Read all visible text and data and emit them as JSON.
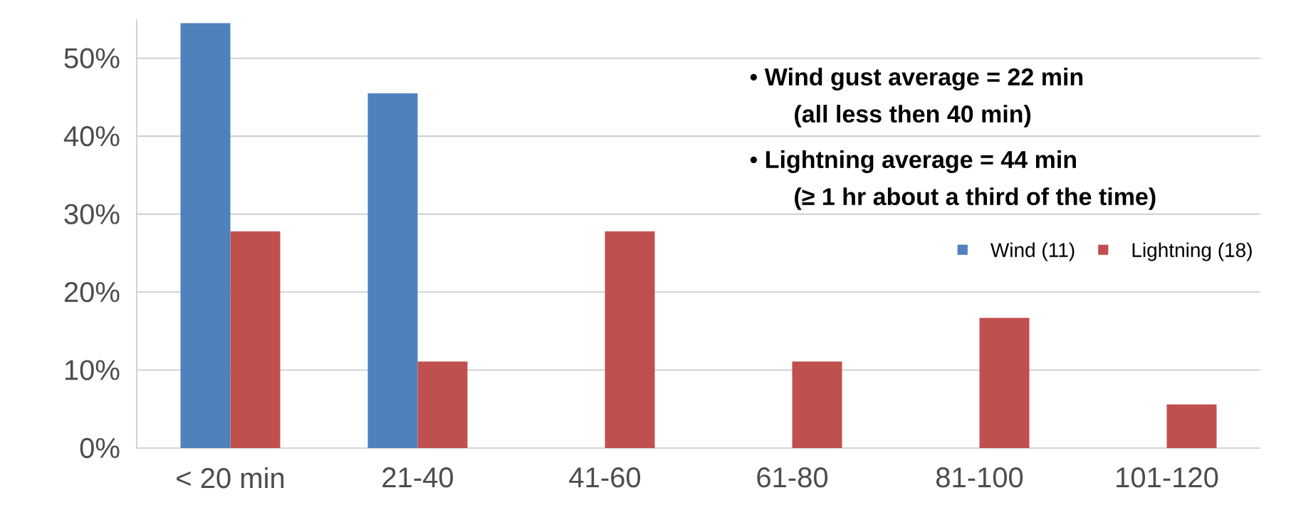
{
  "chart_data": {
    "type": "bar",
    "categories": [
      "< 20 min",
      "21-40",
      "41-60",
      "61-80",
      "81-100",
      "101-120"
    ],
    "series": [
      {
        "name": "Wind (11)",
        "color": "#4f81bd",
        "values": [
          54.5,
          45.5,
          null,
          null,
          null,
          null
        ]
      },
      {
        "name": "Lightning (18)",
        "color": "#c0504d",
        "values": [
          27.8,
          11.1,
          27.8,
          11.1,
          16.7,
          5.6
        ]
      }
    ],
    "ylim": [
      0,
      55
    ],
    "yticks": [
      {
        "value": 0,
        "label": "0%"
      },
      {
        "value": 10,
        "label": "10%"
      },
      {
        "value": 20,
        "label": "20%"
      },
      {
        "value": 30,
        "label": "30%"
      },
      {
        "value": 40,
        "label": "40%"
      },
      {
        "value": 50,
        "label": "50%"
      }
    ],
    "grid": "y",
    "legend": "right",
    "annotations": [
      "• **Wind gust average = 22 min**",
      "**(all less then 40 min)**",
      "• **Lightning average = 44 min**",
      "**(≥ 1 hr about a third of the time)**"
    ]
  }
}
